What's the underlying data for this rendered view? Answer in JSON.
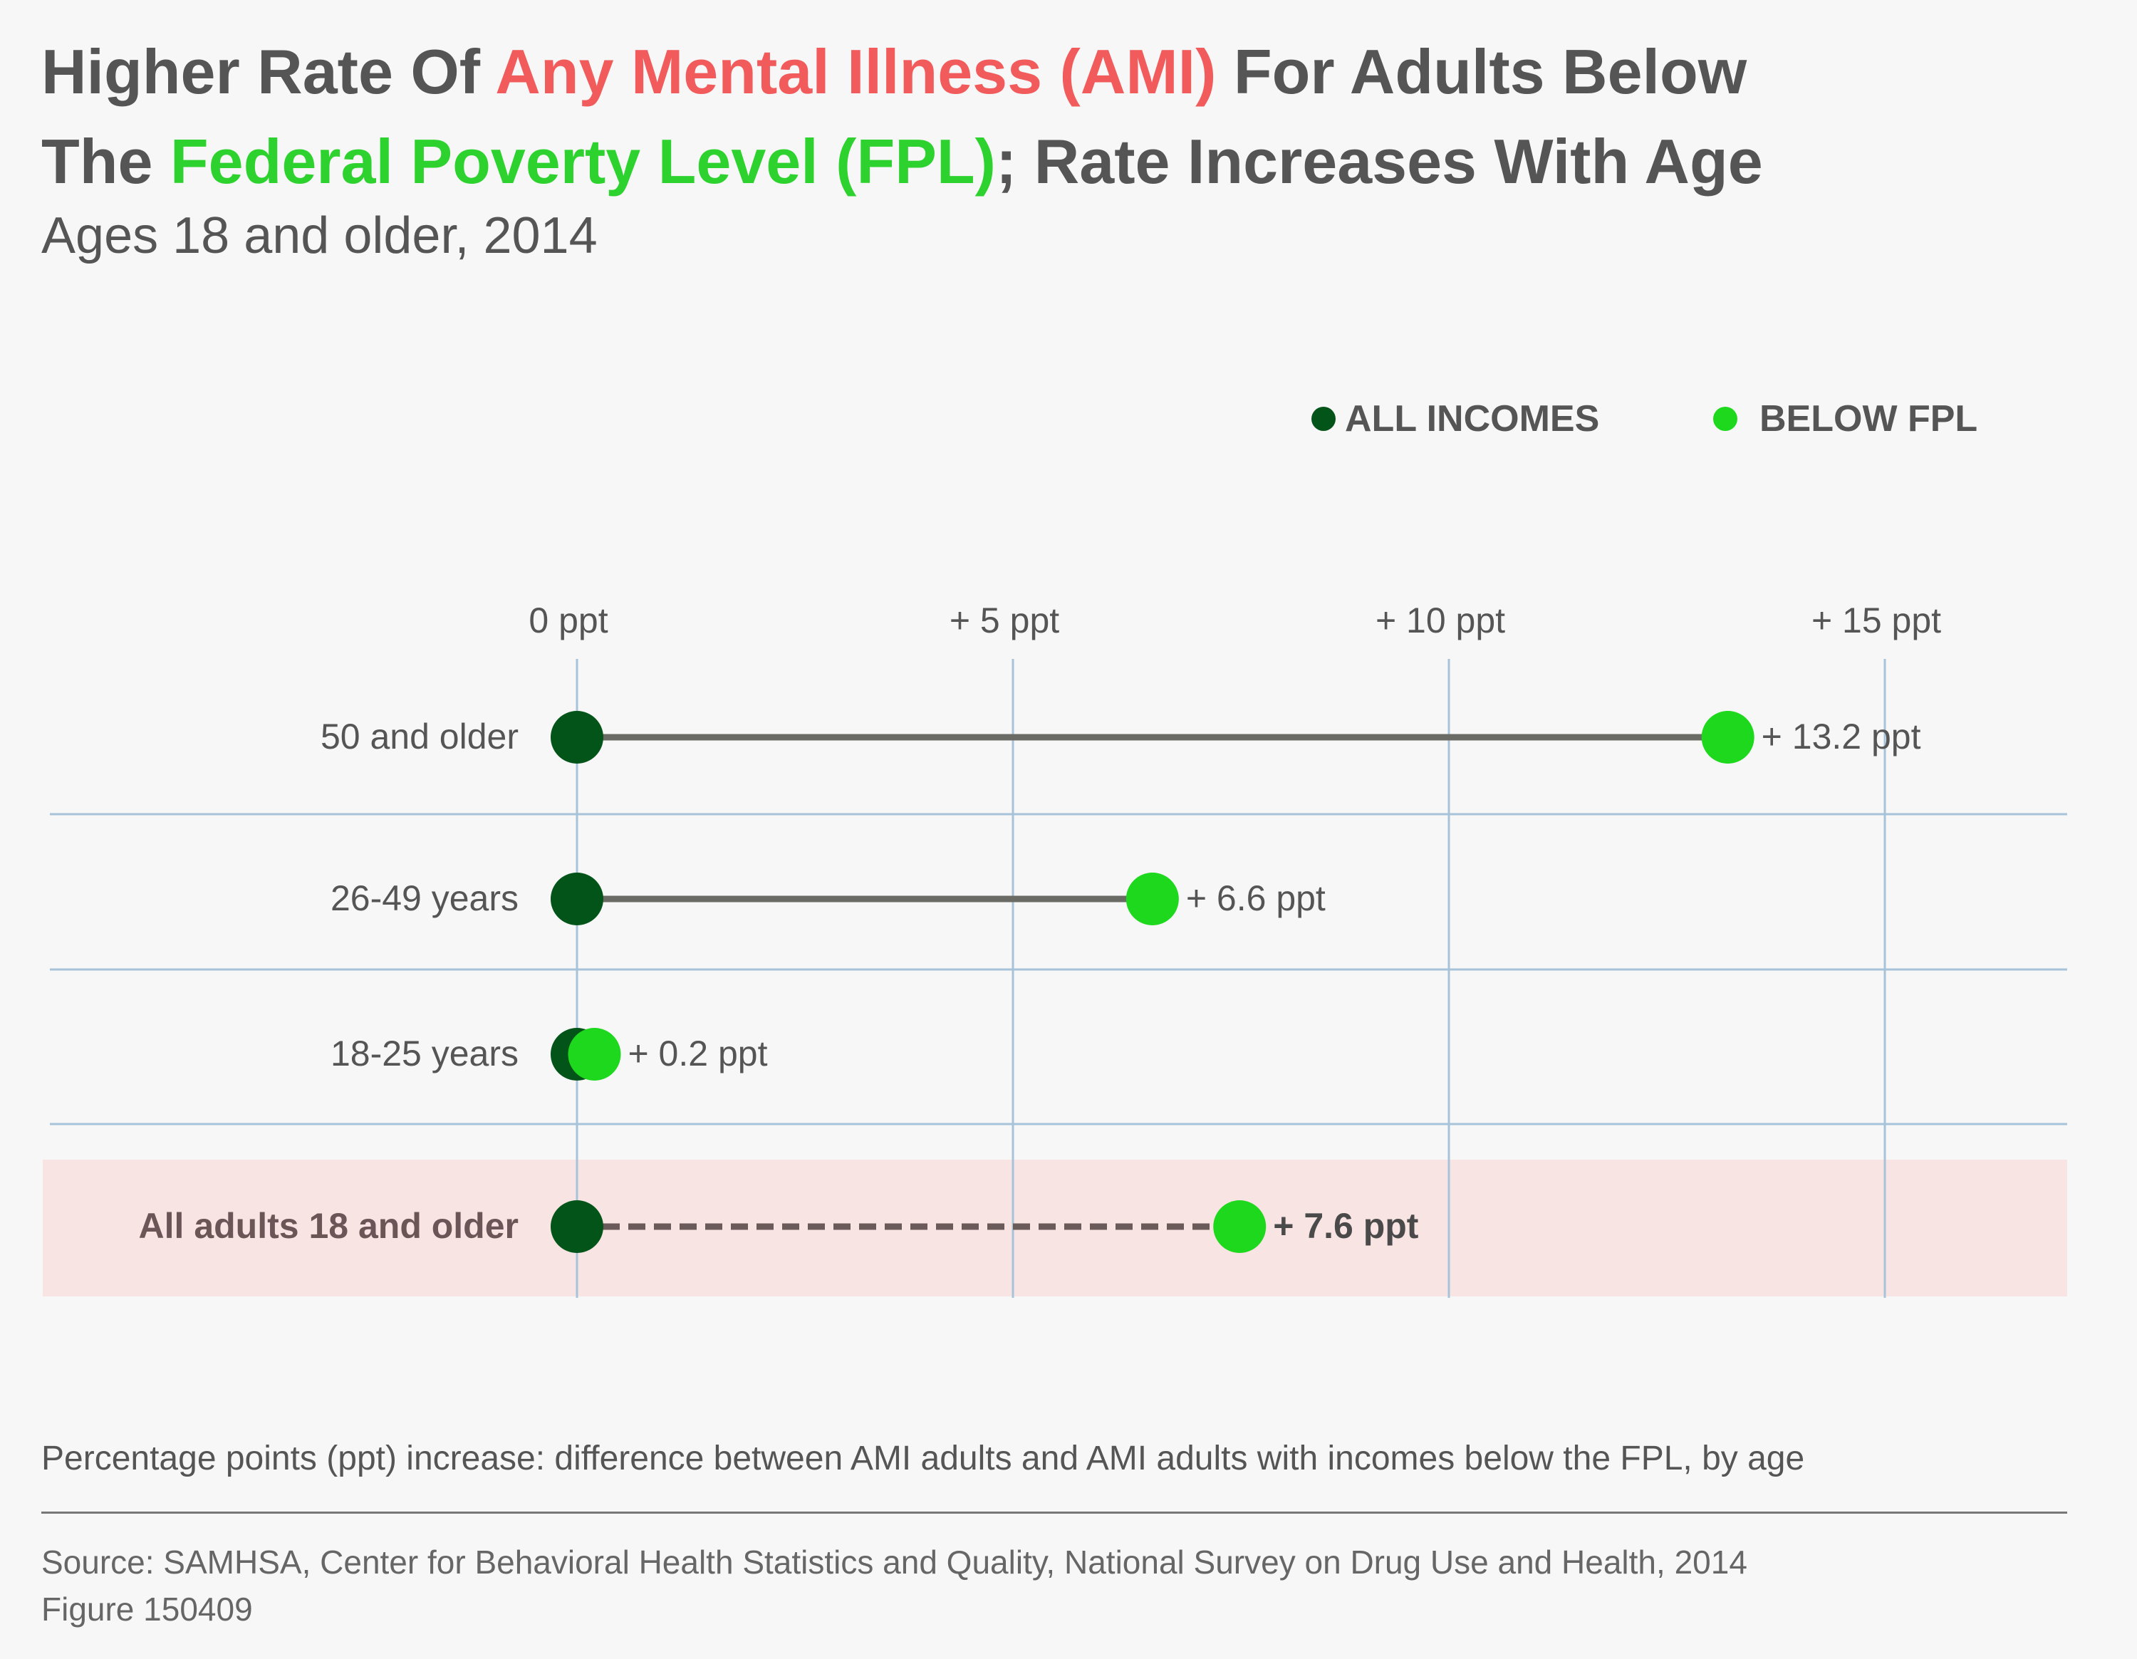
{
  "title": {
    "part1": "Higher Rate Of ",
    "highlight1": "Any Mental Illness (AMI)",
    "part2": " For Adults Below",
    "part3": "The ",
    "highlight2": "Federal Poverty Level (FPL)",
    "part4": "; Rate Increases With Age"
  },
  "subtitle": "Ages 18 and older, 2014",
  "legend": {
    "all_incomes": "ALL INCOMES",
    "below_fpl": "BELOW FPL"
  },
  "colors": {
    "all_incomes": "#035418",
    "below_fpl": "#1dd81d",
    "connector": "#6b6b66",
    "grid": "#a7c3d9",
    "highlight_band": "#f8e4e2",
    "ami": "#f25b5b",
    "fpl": "#2ed22e"
  },
  "chart_data": {
    "type": "dumbbell",
    "x_ticks": [
      {
        "value": 0,
        "label": "0 ppt"
      },
      {
        "value": 5,
        "label": "+ 5 ppt"
      },
      {
        "value": 10,
        "label": "+ 10 ppt"
      },
      {
        "value": 15,
        "label": "+ 15 ppt"
      }
    ],
    "xlim": [
      0,
      15
    ],
    "legend_position": "top-right",
    "rows": [
      {
        "category": "50 and older",
        "all_incomes": 0,
        "below_fpl": 13.2,
        "label": "+ 13.2 ppt",
        "emphasis": false
      },
      {
        "category": "26-49 years",
        "all_incomes": 0,
        "below_fpl": 6.6,
        "label": "+ 6.6 ppt",
        "emphasis": false
      },
      {
        "category": "18-25 years",
        "all_incomes": 0,
        "below_fpl": 0.2,
        "label": "+ 0.2 ppt",
        "emphasis": false
      },
      {
        "category": "All adults 18 and older",
        "all_incomes": 0,
        "below_fpl": 7.6,
        "label": "+ 7.6 ppt",
        "emphasis": true
      }
    ]
  },
  "footnote": "Percentage points (ppt) increase: difference between AMI adults and AMI adults with incomes below the FPL, by age",
  "source": {
    "line1": "Source: SAMHSA, Center for Behavioral Health Statistics and Quality, National Survey on Drug Use and Health, 2014",
    "line2": "Figure 150409"
  }
}
